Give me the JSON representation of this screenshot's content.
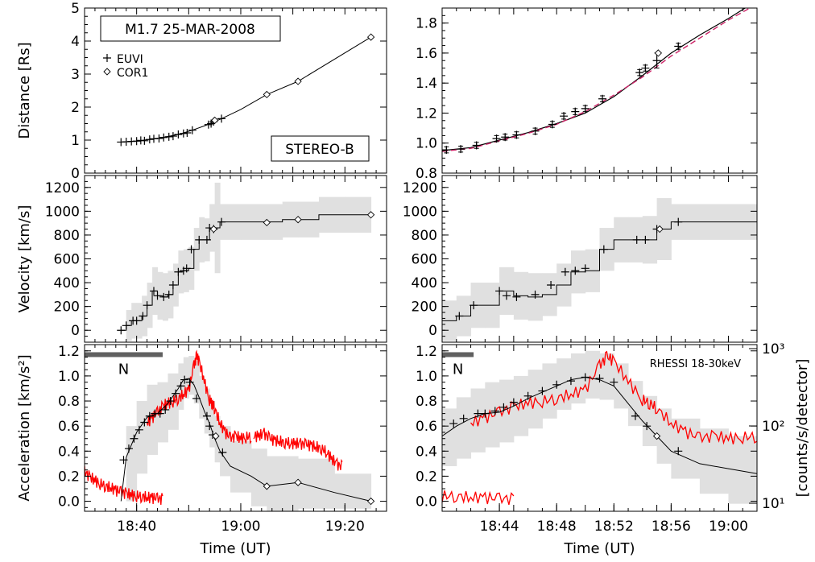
{
  "colors": {
    "axis": "#000000",
    "line": "#000000",
    "uncertainty_band": "#e0e0e0",
    "rhessi": "#ff0000",
    "fit_dashed": "#cc2266",
    "neupert_bar": "#606060"
  },
  "chart_data": [
    {
      "id": "distance-overview",
      "type": "scatter",
      "ylabel": "Distance [Rs]",
      "ylim": [
        0,
        5
      ],
      "xlim_min": [
        30,
        88
      ],
      "yticks": [
        "0",
        "1",
        "2",
        "3",
        "4",
        "5"
      ],
      "annotations": {
        "title_box": "M1.7 25-MAR-2008",
        "instrument_box": "STEREO-B"
      },
      "legend": {
        "placement": "top-left",
        "entries": [
          {
            "symbol": "+",
            "label": "EUVI"
          },
          {
            "symbol": "◇",
            "label": "COR1"
          }
        ]
      },
      "series": [
        {
          "name": "EUVI",
          "marker": "plus",
          "x": [
            37,
            38,
            39,
            40,
            40.8,
            41.5,
            42.5,
            43.3,
            44.3,
            45.2,
            46.2,
            47,
            48,
            49,
            49.7,
            50.7,
            53.8,
            54.3,
            54.8,
            56.3
          ],
          "y": [
            0.94,
            0.95,
            0.96,
            0.97,
            0.99,
            0.98,
            1.02,
            1.04,
            1.05,
            1.08,
            1.1,
            1.12,
            1.17,
            1.2,
            1.22,
            1.3,
            1.47,
            1.5,
            1.56,
            1.65
          ]
        },
        {
          "name": "COR1",
          "marker": "diamond",
          "x": [
            55,
            65,
            71,
            85
          ],
          "y": [
            1.6,
            2.38,
            2.78,
            4.12
          ]
        }
      ],
      "fit_line": {
        "x": [
          37,
          40,
          44,
          48,
          50.7,
          53,
          56.3,
          60,
          65,
          71,
          85
        ],
        "y": [
          0.94,
          0.97,
          1.05,
          1.17,
          1.3,
          1.43,
          1.65,
          1.93,
          2.38,
          2.78,
          4.12
        ]
      }
    },
    {
      "id": "distance-zoom",
      "type": "scatter",
      "ylim": [
        0.8,
        1.9
      ],
      "xlim_min": [
        40,
        62
      ],
      "yticks": [
        "0.8",
        "1.0",
        "1.2",
        "1.4",
        "1.6",
        "1.8"
      ],
      "series": [
        {
          "name": "EUVI",
          "marker": "plus-errorbar",
          "x": [
            40.3,
            41.3,
            42.4,
            43.8,
            44.4,
            45.2,
            46.5,
            47.7,
            48.5,
            49.3,
            50.0,
            51.2,
            53.8,
            54.2,
            55.0,
            56.5
          ],
          "y": [
            0.955,
            0.96,
            0.985,
            1.03,
            1.04,
            1.055,
            1.08,
            1.125,
            1.18,
            1.21,
            1.23,
            1.295,
            1.47,
            1.5,
            1.55,
            1.645
          ],
          "err": [
            0.02,
            0.02,
            0.02,
            0.02,
            0.02,
            0.02,
            0.02,
            0.02,
            0.02,
            0.02,
            0.02,
            0.02,
            0.02,
            0.02,
            0.05,
            0.02
          ]
        },
        {
          "name": "COR1",
          "marker": "diamond",
          "x": [
            55.1
          ],
          "y": [
            1.6
          ]
        }
      ],
      "fit_solid": {
        "x": [
          40,
          42,
          44,
          46,
          48,
          50,
          52,
          54,
          56,
          58,
          60,
          61.5
        ],
        "y": [
          0.95,
          0.97,
          1.02,
          1.07,
          1.13,
          1.2,
          1.31,
          1.45,
          1.6,
          1.72,
          1.83,
          1.92
        ]
      },
      "fit_dashed": {
        "x": [
          40,
          42,
          44,
          46,
          48,
          50,
          52,
          54,
          56,
          58,
          60,
          61.5
        ],
        "y": [
          0.945,
          0.965,
          1.015,
          1.065,
          1.125,
          1.21,
          1.32,
          1.44,
          1.58,
          1.7,
          1.82,
          1.9
        ]
      }
    },
    {
      "id": "velocity-overview",
      "type": "line",
      "ylabel": "Velocity [km/s]",
      "ylim": [
        -100,
        1300
      ],
      "xlim_min": [
        30,
        88
      ],
      "yticks": [
        "0",
        "200",
        "400",
        "600",
        "800",
        "1000",
        "1200"
      ],
      "series": [
        {
          "name": "EUVI",
          "marker": "plus",
          "x": [
            37,
            38,
            39.3,
            40,
            41.2,
            42,
            43.3,
            44,
            45.2,
            46.2,
            47,
            48,
            49,
            49.6,
            50.5,
            52,
            53.5,
            54,
            54.8,
            56.3
          ],
          "y": [
            0,
            40,
            80,
            80,
            120,
            210,
            330,
            290,
            280,
            300,
            380,
            490,
            500,
            520,
            680,
            760,
            760,
            860,
            850,
            910
          ]
        },
        {
          "name": "COR1",
          "marker": "diamond",
          "x": [
            54.8,
            65,
            71,
            85
          ],
          "y": [
            850,
            905,
            930,
            970
          ]
        }
      ],
      "step_line": {
        "x": [
          37,
          38,
          39,
          40,
          41,
          42,
          43,
          44,
          45,
          46,
          47,
          48,
          49,
          50,
          51,
          52,
          53,
          54,
          55,
          56,
          60,
          65,
          68,
          71,
          75,
          80,
          85
        ],
        "y": [
          0,
          40,
          80,
          80,
          120,
          210,
          330,
          290,
          280,
          300,
          380,
          490,
          500,
          520,
          680,
          760,
          760,
          860,
          860,
          910,
          910,
          910,
          930,
          930,
          970,
          970,
          970
        ]
      },
      "band_halfwidth": [
        0,
        130,
        150,
        150,
        170,
        190,
        200,
        200,
        200,
        200,
        180,
        180,
        180,
        180,
        180,
        190,
        180,
        200,
        380,
        150,
        150,
        150,
        150,
        150,
        150,
        150,
        150
      ]
    },
    {
      "id": "velocity-zoom",
      "type": "line",
      "ylim": [
        -100,
        1300
      ],
      "xlim_min": [
        40,
        62
      ],
      "yticks": [
        "0",
        "200",
        "400",
        "600",
        "800",
        "1000",
        "1200"
      ],
      "series": [
        {
          "name": "EUVI",
          "marker": "plus",
          "x": [
            41.2,
            42.2,
            44,
            44.5,
            45.2,
            46.5,
            47.6,
            48.6,
            49.3,
            50.0,
            51.3,
            53.6,
            54.2,
            55.0,
            56.5
          ],
          "y": [
            120,
            210,
            330,
            290,
            280,
            300,
            380,
            490,
            500,
            520,
            680,
            760,
            760,
            850,
            910
          ]
        },
        {
          "name": "COR1",
          "marker": "diamond",
          "x": [
            55.2
          ],
          "y": [
            850
          ]
        }
      ],
      "step_line": {
        "x": [
          40,
          41,
          42,
          43,
          44,
          45,
          46,
          47,
          48,
          49,
          50,
          51,
          52,
          53,
          54,
          55,
          56,
          62
        ],
        "y": [
          80,
          120,
          210,
          210,
          330,
          290,
          280,
          300,
          380,
          490,
          500,
          680,
          760,
          760,
          760,
          850,
          910,
          910
        ]
      },
      "band_halfwidth": [
        170,
        170,
        190,
        190,
        200,
        200,
        200,
        180,
        180,
        180,
        180,
        180,
        190,
        190,
        200,
        260,
        150,
        150
      ]
    },
    {
      "id": "acceleration-overview",
      "type": "line",
      "xlabel": "Time (UT)",
      "ylabel": "Acceleration [km/s²]",
      "ylim": [
        -0.08,
        1.25
      ],
      "xlim_min": [
        30,
        88
      ],
      "xticks": [
        {
          "value": 40,
          "label": "18:40"
        },
        {
          "value": 60,
          "label": "19:00"
        },
        {
          "value": 80,
          "label": "19:20"
        }
      ],
      "yticks": [
        "0.0",
        "0.2",
        "0.4",
        "0.6",
        "0.8",
        "1.0",
        "1.2"
      ],
      "neupert_bar": {
        "x": [
          30,
          45
        ],
        "y": 1.17,
        "label": "N"
      },
      "series": [
        {
          "name": "EUVI",
          "marker": "plus",
          "x": [
            37.5,
            38.5,
            39.5,
            40.5,
            41.5,
            42.5,
            43.5,
            44.5,
            45.5,
            46.5,
            47.5,
            48.5,
            49.2,
            50.2,
            51.5,
            53.5,
            54.0,
            54.6,
            56.5
          ],
          "y": [
            0.33,
            0.42,
            0.5,
            0.57,
            0.63,
            0.68,
            0.7,
            0.7,
            0.73,
            0.8,
            0.86,
            0.92,
            0.97,
            0.95,
            0.82,
            0.68,
            0.6,
            0.53,
            0.39
          ]
        },
        {
          "name": "COR1",
          "marker": "diamond",
          "x": [
            55.2,
            65,
            71,
            85
          ],
          "y": [
            0.52,
            0.12,
            0.15,
            0.0
          ]
        }
      ],
      "curve": {
        "x": [
          37,
          38,
          40,
          42,
          44,
          46,
          48,
          49,
          50,
          51,
          52,
          53,
          54,
          55,
          56,
          58,
          62,
          65,
          71,
          78,
          85
        ],
        "y": [
          0.0,
          0.35,
          0.55,
          0.67,
          0.7,
          0.78,
          0.9,
          0.97,
          0.98,
          0.93,
          0.83,
          0.72,
          0.62,
          0.5,
          0.4,
          0.28,
          0.2,
          0.12,
          0.15,
          0.07,
          0.0
        ]
      },
      "band": {
        "x": [
          37,
          38,
          40,
          42,
          44,
          46,
          48,
          49,
          50,
          51,
          52,
          53,
          54,
          55,
          56,
          58,
          62,
          65,
          71,
          78,
          85
        ],
        "lower": [
          0.0,
          0.0,
          0.22,
          0.37,
          0.47,
          0.57,
          0.73,
          0.82,
          0.85,
          0.78,
          0.66,
          0.54,
          0.43,
          0.31,
          0.2,
          0.07,
          -0.04,
          -0.1,
          -0.06,
          -0.06,
          -0.04
        ],
        "upper": [
          0.0,
          0.6,
          0.8,
          0.93,
          0.95,
          1.02,
          1.1,
          1.15,
          1.16,
          1.12,
          1.0,
          0.9,
          0.8,
          0.68,
          0.6,
          0.48,
          0.42,
          0.36,
          0.34,
          0.22,
          0.04
        ]
      },
      "right_axis": {
        "label": "[counts/s/detector]",
        "type": "log",
        "ticks": [
          {
            "value": 10,
            "label": "10¹"
          },
          {
            "value": 100,
            "label": "10²"
          },
          {
            "value": 1000,
            "label": "10³"
          }
        ]
      }
    },
    {
      "id": "acceleration-zoom",
      "type": "line",
      "xlabel": "Time (UT)",
      "ylim": [
        -0.08,
        1.25
      ],
      "xlim_min": [
        40,
        62
      ],
      "xticks": [
        {
          "value": 44,
          "label": "18:44"
        },
        {
          "value": 48,
          "label": "18:48"
        },
        {
          "value": 52,
          "label": "18:52"
        },
        {
          "value": 56,
          "label": "18:56"
        },
        {
          "value": 60,
          "label": "19:00"
        }
      ],
      "yticks": [
        "0.0",
        "0.2",
        "0.4",
        "0.6",
        "0.8",
        "1.0",
        "1.2"
      ],
      "neupert_bar": {
        "x": [
          40,
          42.2
        ],
        "y": 1.17,
        "label": "N"
      },
      "rhessi_label": "RHESSI 18-30keV",
      "series": [
        {
          "name": "EUVI",
          "marker": "plus",
          "x": [
            40.8,
            41.5,
            42.5,
            43.0,
            43.7,
            44.3,
            45.0,
            46.0,
            47.0,
            48.0,
            49.0,
            50.0,
            51.0,
            52.0,
            53.5,
            54.3,
            56.5
          ],
          "y": [
            0.62,
            0.66,
            0.7,
            0.7,
            0.72,
            0.75,
            0.79,
            0.84,
            0.88,
            0.93,
            0.96,
            0.99,
            0.98,
            0.95,
            0.68,
            0.6,
            0.4
          ]
        },
        {
          "name": "COR1",
          "marker": "diamond",
          "x": [
            55.0
          ],
          "y": [
            0.52
          ]
        }
      ],
      "curve": {
        "x": [
          40,
          41,
          42,
          43,
          44,
          45,
          46,
          47,
          48,
          49,
          50,
          51,
          52,
          53,
          54,
          55,
          56,
          58,
          60,
          62
        ],
        "y": [
          0.52,
          0.6,
          0.66,
          0.7,
          0.71,
          0.76,
          0.82,
          0.87,
          0.92,
          0.97,
          0.99,
          0.97,
          0.92,
          0.78,
          0.64,
          0.52,
          0.4,
          0.3,
          0.26,
          0.22
        ]
      },
      "band": {
        "x": [
          40,
          41,
          42,
          43,
          44,
          45,
          46,
          47,
          48,
          49,
          50,
          51,
          52,
          53,
          54,
          55,
          56,
          58,
          60,
          62
        ],
        "lower": [
          0.28,
          0.34,
          0.39,
          0.43,
          0.47,
          0.52,
          0.58,
          0.66,
          0.73,
          0.78,
          0.82,
          0.81,
          0.74,
          0.6,
          0.44,
          0.3,
          0.18,
          0.06,
          -0.02,
          -0.06
        ],
        "upper": [
          0.74,
          0.83,
          0.9,
          0.95,
          0.97,
          1.0,
          1.05,
          1.1,
          1.14,
          1.18,
          1.2,
          1.18,
          1.1,
          0.96,
          0.84,
          0.74,
          0.66,
          0.58,
          0.52,
          0.5
        ]
      },
      "right_axis": {
        "label": "[counts/s/detector]",
        "type": "log",
        "ticks": [
          {
            "value": 10,
            "label": "10¹"
          },
          {
            "value": 100,
            "label": "10²"
          },
          {
            "value": 1000,
            "label": "10³"
          }
        ]
      }
    }
  ],
  "rhessi_18_30keV": {
    "unit": "counts/s/detector",
    "segments": [
      {
        "x": [
          30,
          31,
          32,
          33,
          34,
          35,
          36,
          37,
          38,
          39,
          40,
          41,
          42,
          43,
          44,
          45
        ],
        "y": [
          26,
          22,
          20,
          18,
          17,
          16,
          15,
          14,
          13.5,
          13,
          12.5,
          12.5,
          12,
          12,
          11.5,
          11.5
        ]
      },
      {
        "x": [
          42,
          43,
          44,
          45,
          46,
          47,
          48,
          49,
          50,
          51,
          51.5,
          52,
          53,
          54,
          54.5,
          55,
          56,
          57,
          58,
          59,
          60,
          61,
          62
        ],
        "y": [
          110,
          130,
          150,
          180,
          200,
          210,
          230,
          260,
          300,
          600,
          800,
          700,
          380,
          220,
          200,
          170,
          110,
          85,
          70,
          75,
          70,
          72,
          74
        ]
      },
      {
        "x": [
          62.5,
          63.5,
          64.5,
          65.5,
          66.5,
          67.5,
          68.5,
          69.5,
          70.5,
          71.5,
          72.5,
          73.5,
          74.5,
          75.5,
          76.5,
          77.5,
          78.5,
          79.5
        ],
        "y": [
          74,
          76,
          80,
          70,
          66,
          64,
          62,
          61,
          60,
          59,
          58,
          57,
          54,
          52,
          46,
          38,
          32,
          30
        ]
      }
    ]
  }
}
